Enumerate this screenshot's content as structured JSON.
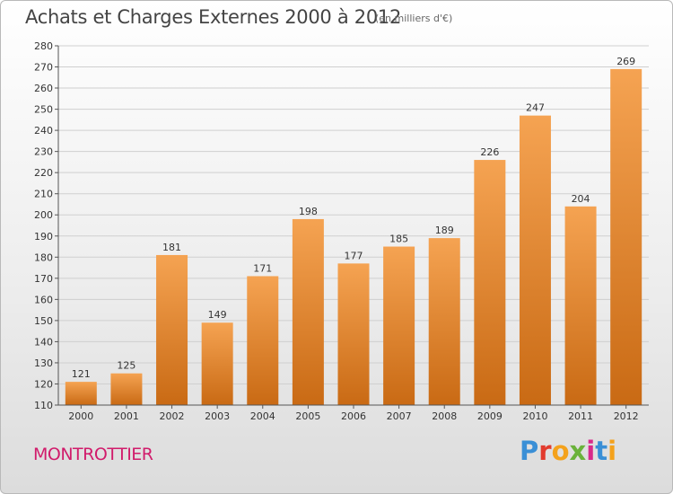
{
  "header": {
    "title": "Achats et Charges Externes 2000 à 2012",
    "subtitle": "(en milliers d'€)"
  },
  "footer": {
    "commune": "MONTROTTIER",
    "brand": "Proxiti",
    "brand_colors": [
      "#3a8fd6",
      "#e23b2e",
      "#f4a21c",
      "#6ab23a",
      "#d82a8a",
      "#3a8fd6",
      "#f4a21c"
    ]
  },
  "chart_data": {
    "type": "bar",
    "categories": [
      "2000",
      "2001",
      "2002",
      "2003",
      "2004",
      "2005",
      "2006",
      "2007",
      "2008",
      "2009",
      "2010",
      "2011",
      "2012"
    ],
    "values": [
      121,
      125,
      181,
      149,
      171,
      198,
      177,
      185,
      189,
      226,
      247,
      204,
      269
    ],
    "title": "Achats et Charges Externes 2000 à 2012",
    "ylim": [
      110,
      280
    ],
    "yticks": [
      110,
      120,
      130,
      140,
      150,
      160,
      170,
      180,
      190,
      200,
      210,
      220,
      230,
      240,
      250,
      260,
      270,
      280
    ],
    "grid": true,
    "bar_color_top": "#f5a352",
    "bar_color_bottom": "#c96a14"
  }
}
